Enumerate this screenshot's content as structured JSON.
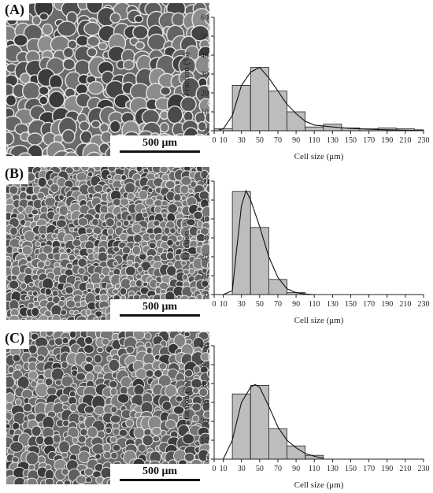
{
  "panels": [
    {
      "label": "(A)",
      "scale_label": "500 μm",
      "seed": 7,
      "cell_r": 9.5
    },
    {
      "label": "(B)",
      "scale_label": "500 μm",
      "seed": 13,
      "cell_r": 5.4
    },
    {
      "label": "(C)",
      "scale_label": "500 μm",
      "seed": 29,
      "cell_r": 6.5
    }
  ],
  "chart_data": [
    {
      "type": "bar",
      "ylabel": "Fraction (%)",
      "xlabel": "Cell size (μm)",
      "ylim": [
        0,
        60
      ],
      "yticks": [
        0,
        10,
        20,
        30,
        40,
        50,
        60
      ],
      "xlim": [
        0,
        230
      ],
      "xticks": [
        0,
        10,
        30,
        50,
        70,
        90,
        110,
        130,
        150,
        170,
        190,
        210,
        230
      ],
      "bin_width": 20,
      "bin_centers": [
        10,
        30,
        50,
        70,
        90,
        110,
        130,
        150,
        170,
        190,
        210,
        230
      ],
      "values": [
        1,
        24,
        33.5,
        21,
        10,
        2,
        3.5,
        1.5,
        1,
        1.5,
        1,
        0.5
      ],
      "fit_curve": [
        [
          5,
          0.5
        ],
        [
          10,
          1
        ],
        [
          20,
          8
        ],
        [
          30,
          24
        ],
        [
          40,
          31
        ],
        [
          50,
          33.5
        ],
        [
          60,
          28
        ],
        [
          70,
          21
        ],
        [
          80,
          14
        ],
        [
          90,
          9
        ],
        [
          100,
          5
        ],
        [
          110,
          3
        ],
        [
          130,
          2
        ],
        [
          150,
          1.2
        ],
        [
          170,
          0.8
        ],
        [
          190,
          0.5
        ],
        [
          210,
          0.3
        ],
        [
          230,
          0.1
        ]
      ],
      "grid": false
    },
    {
      "type": "bar",
      "ylabel": "Fraction (%)",
      "xlabel": "Cell size (μm)",
      "ylim": [
        0,
        60
      ],
      "yticks": [
        0,
        10,
        20,
        30,
        40,
        50,
        60
      ],
      "xlim": [
        0,
        230
      ],
      "xticks": [
        0,
        10,
        30,
        50,
        70,
        90,
        110,
        130,
        150,
        170,
        190,
        210,
        230
      ],
      "bin_width": 20,
      "bin_centers": [
        30,
        50,
        70,
        90
      ],
      "values": [
        54.5,
        35.5,
        8,
        1
      ],
      "fit_curve": [
        [
          10,
          0
        ],
        [
          20,
          2
        ],
        [
          25,
          25
        ],
        [
          30,
          47
        ],
        [
          35,
          55
        ],
        [
          40,
          50
        ],
        [
          50,
          36
        ],
        [
          60,
          20
        ],
        [
          70,
          9
        ],
        [
          80,
          3
        ],
        [
          90,
          1
        ],
        [
          100,
          0.3
        ],
        [
          110,
          0
        ]
      ],
      "grid": false
    },
    {
      "type": "bar",
      "ylabel": "Fraction (%)",
      "xlabel": "Cell size (μm)",
      "ylim": [
        0,
        60
      ],
      "yticks": [
        0,
        10,
        20,
        30,
        40,
        50,
        60
      ],
      "xlim": [
        0,
        230
      ],
      "xticks": [
        0,
        10,
        30,
        50,
        70,
        90,
        110,
        130,
        150,
        170,
        190,
        210,
        230
      ],
      "bin_width": 20,
      "bin_centers": [
        30,
        50,
        70,
        90,
        110
      ],
      "values": [
        34.5,
        39,
        16,
        7,
        2
      ],
      "fit_curve": [
        [
          10,
          0
        ],
        [
          20,
          10
        ],
        [
          30,
          30
        ],
        [
          40,
          38
        ],
        [
          45,
          39.5
        ],
        [
          50,
          38
        ],
        [
          60,
          28
        ],
        [
          70,
          17
        ],
        [
          80,
          10
        ],
        [
          90,
          6
        ],
        [
          100,
          3
        ],
        [
          110,
          1.5
        ],
        [
          120,
          0.5
        ]
      ],
      "grid": false
    }
  ]
}
